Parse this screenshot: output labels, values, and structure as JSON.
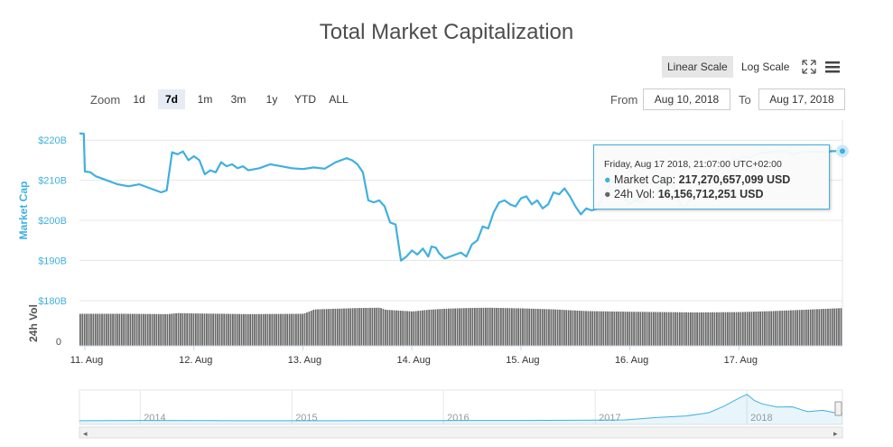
{
  "title": "Total Market Capitalization",
  "scale_buttons": {
    "linear": "Linear Scale",
    "log": "Log Scale"
  },
  "zoom": {
    "label": "Zoom",
    "buttons": [
      "1d",
      "7d",
      "1m",
      "3m",
      "1y",
      "YTD",
      "ALL"
    ],
    "active": "7d"
  },
  "range": {
    "from_label": "From",
    "from_value": "Aug 10, 2018",
    "to_label": "To",
    "to_value": "Aug 17, 2018"
  },
  "tooltip": {
    "date": "Friday, Aug 17 2018, 21:07:00 UTC+02:00",
    "market_cap_label": "Market Cap:",
    "market_cap_value": "217,270,657,099 USD",
    "volume_label": "24h Vol:",
    "volume_value": "16,156,712,251 USD"
  },
  "colors": {
    "market_cap": "#3fb0e0",
    "volume": "#666666",
    "navigator": "#3fb0e0"
  },
  "chart_data": {
    "type": "line",
    "title": "Total Market Capitalization",
    "xlabel": "",
    "ylabel": "Market Cap",
    "y2label": "24h Vol",
    "ylim": [
      180,
      225
    ],
    "y_ticks": [
      180,
      190,
      200,
      210,
      220
    ],
    "y_tick_labels": [
      "$180B",
      "$190B",
      "$200B",
      "$210B",
      "$220B"
    ],
    "volume_tick_label": "0",
    "x_ticks": [
      "11. Aug",
      "12. Aug",
      "13. Aug",
      "14. Aug",
      "15. Aug",
      "16. Aug",
      "17. Aug"
    ],
    "x_tick_days": [
      11,
      12,
      13,
      14,
      15,
      16,
      17
    ],
    "x_range_days": [
      10.95,
      17.95
    ],
    "series": [
      {
        "name": "Market Cap (B USD)",
        "x": [
          10.95,
          10.99,
          11.0,
          11.05,
          11.1,
          11.2,
          11.3,
          11.4,
          11.5,
          11.6,
          11.7,
          11.75,
          11.8,
          11.85,
          11.9,
          11.95,
          12.0,
          12.05,
          12.1,
          12.15,
          12.2,
          12.25,
          12.3,
          12.35,
          12.4,
          12.45,
          12.5,
          12.6,
          12.7,
          12.8,
          12.9,
          13.0,
          13.1,
          13.2,
          13.3,
          13.4,
          13.45,
          13.5,
          13.55,
          13.6,
          13.65,
          13.7,
          13.75,
          13.8,
          13.85,
          13.9,
          13.95,
          14.0,
          14.05,
          14.1,
          14.15,
          14.18,
          14.22,
          14.25,
          14.3,
          14.35,
          14.4,
          14.45,
          14.5,
          14.55,
          14.6,
          14.65,
          14.7,
          14.75,
          14.8,
          14.85,
          14.9,
          14.95,
          15.0,
          15.05,
          15.1,
          15.15,
          15.2,
          15.25,
          15.3,
          15.35,
          15.4,
          15.45,
          15.5,
          15.55,
          15.6,
          15.65,
          15.7,
          15.75,
          15.8,
          15.85,
          15.9,
          15.95,
          16.0,
          16.05,
          16.1,
          16.15,
          16.2,
          16.25,
          16.3,
          16.35,
          16.4,
          16.45,
          16.5,
          16.55,
          16.6,
          16.65,
          16.7,
          16.75,
          16.8,
          16.85,
          16.9,
          16.95,
          17.0,
          17.05,
          17.1,
          17.15,
          17.2,
          17.3,
          17.4,
          17.5,
          17.6,
          17.7,
          17.8,
          17.85,
          17.9,
          17.95
        ],
        "values": [
          221.7,
          221.6,
          212.2,
          212.0,
          211.0,
          210.0,
          209.0,
          208.5,
          209.0,
          208.0,
          207.0,
          207.5,
          217.0,
          216.5,
          217.2,
          215.0,
          216.0,
          215.0,
          211.5,
          212.5,
          212.0,
          214.5,
          213.5,
          214.0,
          213.0,
          213.5,
          212.5,
          213.0,
          214.0,
          213.5,
          213.0,
          212.8,
          213.2,
          212.9,
          214.5,
          215.5,
          215.0,
          214.0,
          212.0,
          205.0,
          204.5,
          205.0,
          203.5,
          199.5,
          199.0,
          190.0,
          191.0,
          192.5,
          191.5,
          193.0,
          191.0,
          193.5,
          193.2,
          191.8,
          190.5,
          191.0,
          191.5,
          192.0,
          191.0,
          194.0,
          195.0,
          198.5,
          198.0,
          202.0,
          204.5,
          205.0,
          204.0,
          203.5,
          205.5,
          206.0,
          204.0,
          205.0,
          203.0,
          204.0,
          207.0,
          206.5,
          208.0,
          206.0,
          203.5,
          201.5,
          203.0,
          202.5,
          203.0,
          206.0,
          208.0,
          210.0,
          209.0,
          205.5,
          204.0,
          205.0,
          204.5,
          206.0,
          205.5,
          206.5,
          210.5,
          211.0,
          208.5,
          204.5,
          203.0,
          205.0,
          206.5,
          207.5,
          209.5,
          210.5,
          212.5,
          213.0,
          214.0,
          215.5,
          215.0,
          216.0,
          215.5,
          216.3,
          216.8,
          217.0,
          217.3,
          216.5,
          217.2,
          217.1,
          217.0,
          217.27,
          217.27,
          217.27
        ]
      },
      {
        "name": "24h Vol (relative)",
        "x": [
          10.95,
          11.35,
          11.75,
          11.85,
          12.0,
          12.5,
          13.0,
          13.1,
          13.5,
          13.7,
          13.75,
          14.0,
          14.15,
          14.3,
          14.5,
          14.7,
          15.0,
          15.3,
          15.6,
          16.0,
          16.3,
          16.6,
          17.0,
          17.3,
          17.6,
          17.95
        ],
        "values": [
          0.95,
          0.95,
          0.94,
          0.97,
          0.96,
          0.94,
          0.95,
          1.08,
          1.12,
          1.13,
          1.07,
          1.02,
          1.07,
          1.1,
          1.12,
          1.13,
          1.11,
          1.08,
          1.03,
          1.01,
          1.0,
          0.99,
          1.0,
          1.03,
          1.07,
          1.12
        ]
      }
    ],
    "navigator": {
      "years": [
        "2014",
        "2015",
        "2016",
        "2017",
        "2018"
      ],
      "x": [
        2013.6,
        2014.0,
        2014.5,
        2015.0,
        2015.5,
        2016.0,
        2016.5,
        2017.0,
        2017.2,
        2017.4,
        2017.6,
        2017.75,
        2017.85,
        2017.95,
        2018.0,
        2018.05,
        2018.1,
        2018.2,
        2018.3,
        2018.4,
        2018.5,
        2018.6,
        2018.63
      ],
      "values": [
        1.5,
        10,
        5,
        4,
        5,
        7,
        12,
        18,
        28,
        100,
        150,
        250,
        450,
        700,
        810,
        620,
        520,
        420,
        430,
        280,
        320,
        230,
        217
      ]
    }
  }
}
